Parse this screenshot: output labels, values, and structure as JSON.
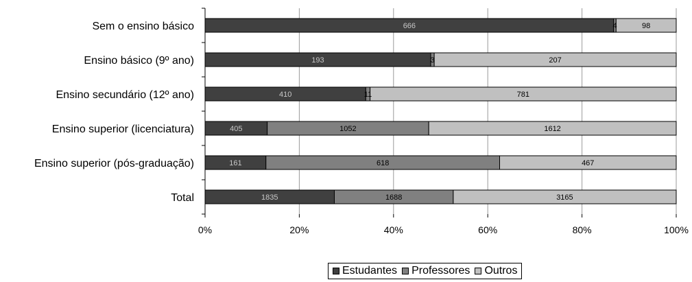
{
  "chart_data": {
    "type": "bar",
    "orientation": "horizontal",
    "stacking": "percent",
    "categories": [
      "Sem o ensino básico",
      "Ensino básico (9º ano)",
      "Ensino secundário (12º ano)",
      "Ensino superior (licenciatura)",
      "Ensino superior (pós-graduação)",
      "Total"
    ],
    "series": [
      {
        "name": "Estudantes",
        "color": "#404040",
        "label_color": "#c8c8c8",
        "values": [
          666,
          193,
          410,
          405,
          161,
          1835
        ]
      },
      {
        "name": "Professores",
        "color": "#808080",
        "label_color": "#000000",
        "values": [
          4,
          3,
          11,
          1052,
          618,
          1688
        ]
      },
      {
        "name": "Outros",
        "color": "#c0c0c0",
        "label_color": "#000000",
        "values": [
          98,
          207,
          781,
          1612,
          467,
          3165
        ]
      }
    ],
    "xticks": [
      "0%",
      "20%",
      "40%",
      "60%",
      "80%",
      "100%"
    ],
    "xlim": [
      0,
      100
    ],
    "grid": true,
    "legend_position": "bottom"
  }
}
